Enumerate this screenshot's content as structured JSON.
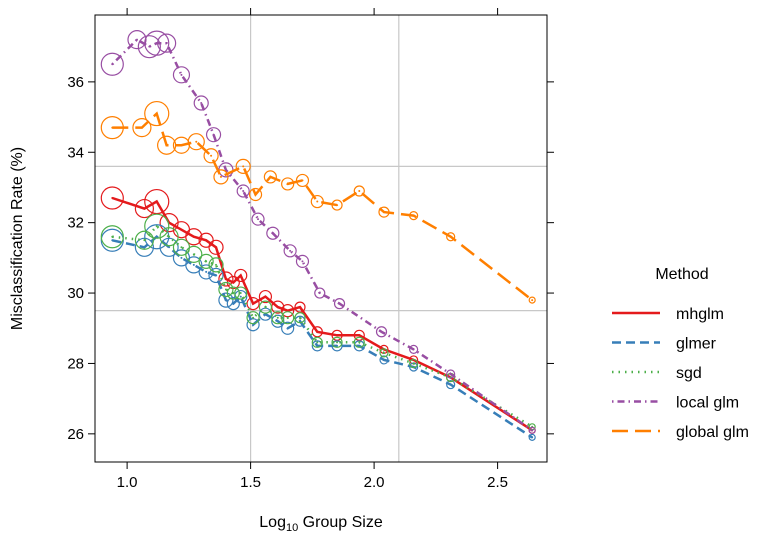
{
  "chart_data": {
    "type": "line",
    "xlabel_main": "Log",
    "xlabel_sub": "10",
    "xlabel_rest": " Group Size",
    "ylabel": "Misclassification Rate (%)",
    "xlim": [
      0.87,
      2.7
    ],
    "ylim": [
      25.2,
      37.9
    ],
    "x_ticks": [
      1.0,
      1.5,
      2.0,
      2.5
    ],
    "x_tick_labels": [
      "1.0",
      "1.5",
      "2.0",
      "2.5"
    ],
    "y_ticks": [
      26,
      28,
      30,
      32,
      34,
      36
    ],
    "y_tick_labels": [
      "26",
      "28",
      "30",
      "32",
      "34",
      "36"
    ],
    "ref_lines_x": [
      1.5,
      2.1
    ],
    "ref_lines_y": [
      29.5,
      33.6
    ],
    "grid": false,
    "legend_title": "Method",
    "legend_position": "right",
    "series": [
      {
        "name": "mhglm",
        "color": "#e41a1c",
        "dash": "solid",
        "x": [
          0.94,
          1.07,
          1.12,
          1.17,
          1.22,
          1.27,
          1.32,
          1.36,
          1.4,
          1.43,
          1.46,
          1.51,
          1.56,
          1.61,
          1.65,
          1.7,
          1.77,
          1.85,
          1.94,
          2.04,
          2.16,
          2.31,
          2.64
        ],
        "y": [
          32.7,
          32.4,
          32.6,
          32.0,
          31.8,
          31.6,
          31.5,
          31.3,
          30.4,
          30.3,
          30.5,
          29.7,
          29.9,
          29.6,
          29.5,
          29.6,
          28.9,
          28.8,
          28.8,
          28.4,
          28.1,
          27.6,
          26.1
        ],
        "sizes": [
          11,
          9,
          12,
          9,
          8,
          8,
          7,
          7,
          7,
          6,
          6,
          6,
          6,
          6,
          6,
          5,
          5,
          5,
          5,
          4,
          4,
          4,
          3
        ]
      },
      {
        "name": "glmer",
        "color": "#377eb8",
        "dash": "dashed",
        "x": [
          0.94,
          1.07,
          1.12,
          1.17,
          1.22,
          1.27,
          1.32,
          1.36,
          1.4,
          1.43,
          1.46,
          1.51,
          1.56,
          1.61,
          1.65,
          1.7,
          1.77,
          1.85,
          1.94,
          2.04,
          2.16,
          2.31,
          2.64
        ],
        "y": [
          31.5,
          31.3,
          31.6,
          31.3,
          31.0,
          30.8,
          30.6,
          30.5,
          29.8,
          29.7,
          29.9,
          29.1,
          29.4,
          29.2,
          29.0,
          29.2,
          28.5,
          28.5,
          28.5,
          28.1,
          27.9,
          27.4,
          25.9
        ],
        "sizes": [
          11,
          9,
          12,
          9,
          8,
          8,
          7,
          7,
          7,
          6,
          6,
          6,
          6,
          6,
          6,
          5,
          5,
          5,
          5,
          4,
          4,
          4,
          3
        ]
      },
      {
        "name": "sgd",
        "color": "#4daf4a",
        "dash": "dotted",
        "x": [
          0.94,
          1.07,
          1.12,
          1.17,
          1.22,
          1.27,
          1.32,
          1.36,
          1.4,
          1.43,
          1.46,
          1.51,
          1.56,
          1.61,
          1.65,
          1.7,
          1.77,
          1.85,
          1.94,
          2.04,
          2.16,
          2.31,
          2.64
        ],
        "y": [
          31.6,
          31.5,
          31.9,
          31.6,
          31.3,
          31.1,
          30.9,
          30.8,
          30.1,
          30.0,
          30.0,
          29.3,
          29.6,
          29.3,
          29.3,
          29.3,
          28.6,
          28.6,
          28.6,
          28.3,
          28.0,
          27.6,
          26.2
        ],
        "sizes": [
          11,
          9,
          12,
          9,
          8,
          8,
          7,
          7,
          7,
          6,
          6,
          6,
          6,
          6,
          6,
          5,
          5,
          5,
          5,
          4,
          4,
          4,
          3
        ]
      },
      {
        "name": "local glm",
        "color": "#984ea3",
        "dash": "dotdash",
        "x": [
          0.94,
          1.04,
          1.09,
          1.12,
          1.16,
          1.22,
          1.3,
          1.35,
          1.4,
          1.47,
          1.53,
          1.59,
          1.66,
          1.71,
          1.78,
          1.86,
          2.03,
          2.16,
          2.31,
          2.64
        ],
        "y": [
          36.5,
          37.2,
          37.0,
          37.1,
          37.1,
          36.2,
          35.4,
          34.5,
          33.5,
          32.9,
          32.1,
          31.7,
          31.2,
          30.9,
          30.0,
          29.7,
          28.9,
          28.4,
          27.7,
          26.1
        ],
        "sizes": [
          11,
          9,
          11,
          12,
          9,
          8,
          7,
          7,
          7,
          6,
          6,
          6,
          6,
          6,
          5,
          5,
          5,
          4,
          4,
          3
        ]
      },
      {
        "name": "global glm",
        "color": "#ff7f00",
        "dash": "longdash",
        "x": [
          0.94,
          1.06,
          1.12,
          1.16,
          1.22,
          1.28,
          1.34,
          1.38,
          1.47,
          1.52,
          1.58,
          1.65,
          1.71,
          1.77,
          1.85,
          1.94,
          2.04,
          2.16,
          2.31,
          2.64
        ],
        "y": [
          34.7,
          34.7,
          35.1,
          34.2,
          34.2,
          34.3,
          33.9,
          33.3,
          33.6,
          32.8,
          33.3,
          33.1,
          33.2,
          32.6,
          32.5,
          32.9,
          32.3,
          32.2,
          31.6,
          29.8
        ],
        "sizes": [
          11,
          9,
          12,
          9,
          8,
          8,
          7,
          7,
          7,
          6,
          6,
          6,
          6,
          6,
          5,
          5,
          5,
          4,
          4,
          3
        ]
      }
    ]
  }
}
